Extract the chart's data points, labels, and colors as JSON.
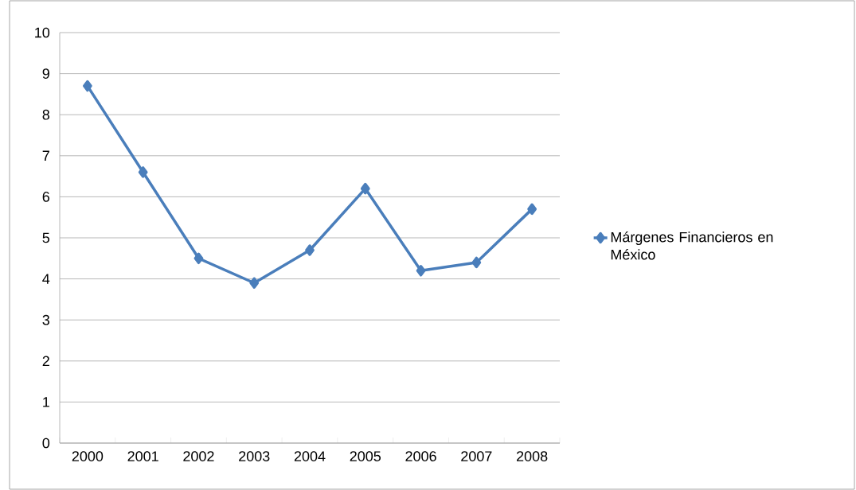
{
  "chart_data": {
    "type": "line",
    "categories": [
      "2000",
      "2001",
      "2002",
      "2003",
      "2004",
      "2005",
      "2006",
      "2007",
      "2008"
    ],
    "series": [
      {
        "name": "Márgenes Financieros en México",
        "color": "#4a7ebb",
        "values": [
          8.7,
          6.6,
          4.5,
          3.9,
          4.7,
          6.2,
          4.2,
          4.4,
          5.7
        ]
      }
    ],
    "ylim": [
      0,
      10
    ],
    "yticks": [
      0,
      1,
      2,
      3,
      4,
      5,
      6,
      7,
      8,
      9,
      10
    ],
    "grid": "y",
    "legend": "right",
    "marker": "diamond"
  }
}
